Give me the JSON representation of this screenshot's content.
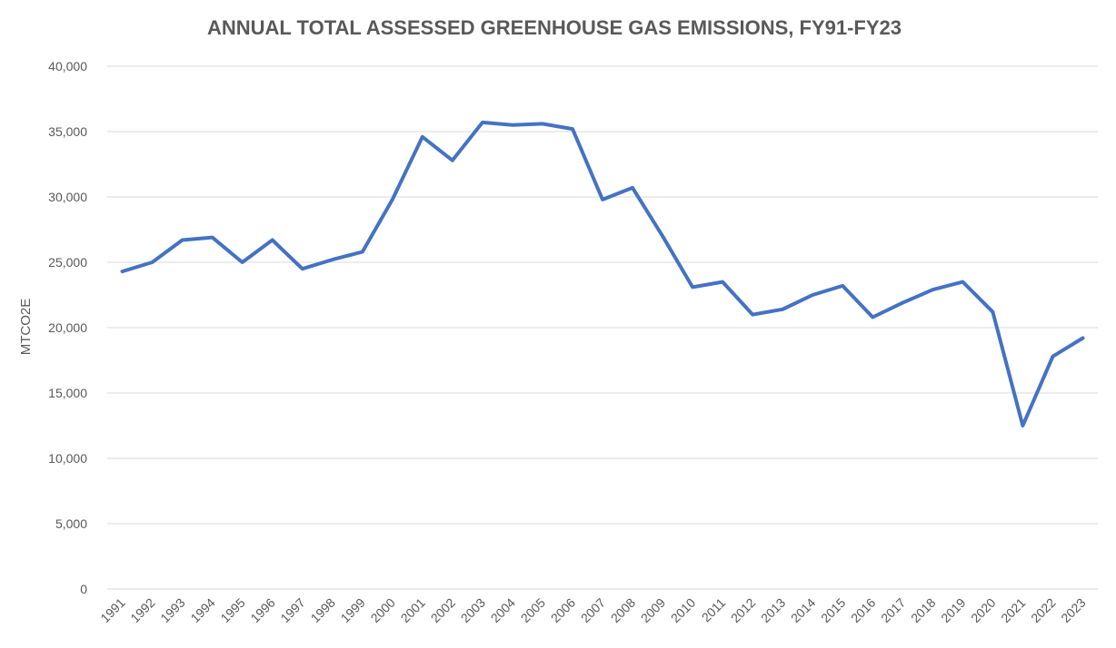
{
  "chart_data": {
    "type": "line",
    "title": "ANNUAL TOTAL ASSESSED GREENHOUSE GAS EMISSIONS, FY91-FY23",
    "xlabel": "",
    "ylabel": "MTCO2E",
    "ylim": [
      0,
      40000
    ],
    "yticks": [
      "0",
      "5,000",
      "10,000",
      "15,000",
      "20,000",
      "25,000",
      "30,000",
      "35,000",
      "40,000"
    ],
    "grid": true,
    "legend": "none",
    "categories": [
      "1991",
      "1992",
      "1993",
      "1994",
      "1995",
      "1996",
      "1997",
      "1998",
      "1999",
      "2000",
      "2001",
      "2002",
      "2003",
      "2004",
      "2005",
      "2006",
      "2007",
      "2008",
      "2009",
      "2010",
      "2011",
      "2012",
      "2013",
      "2014",
      "2015",
      "2016",
      "2017",
      "2018",
      "2019",
      "2020",
      "2021",
      "2022",
      "2023"
    ],
    "series": [
      {
        "values": [
          24300,
          25000,
          26700,
          26900,
          25000,
          26700,
          24500,
          25200,
          25800,
          29800,
          34600,
          32800,
          35700,
          35500,
          35600,
          35200,
          29800,
          30700,
          27000,
          23100,
          23500,
          21000,
          21400,
          22500,
          23200,
          20800,
          21900,
          22900,
          23500,
          21200,
          12500,
          17800,
          19200
        ],
        "color": "#4472c4"
      }
    ]
  }
}
